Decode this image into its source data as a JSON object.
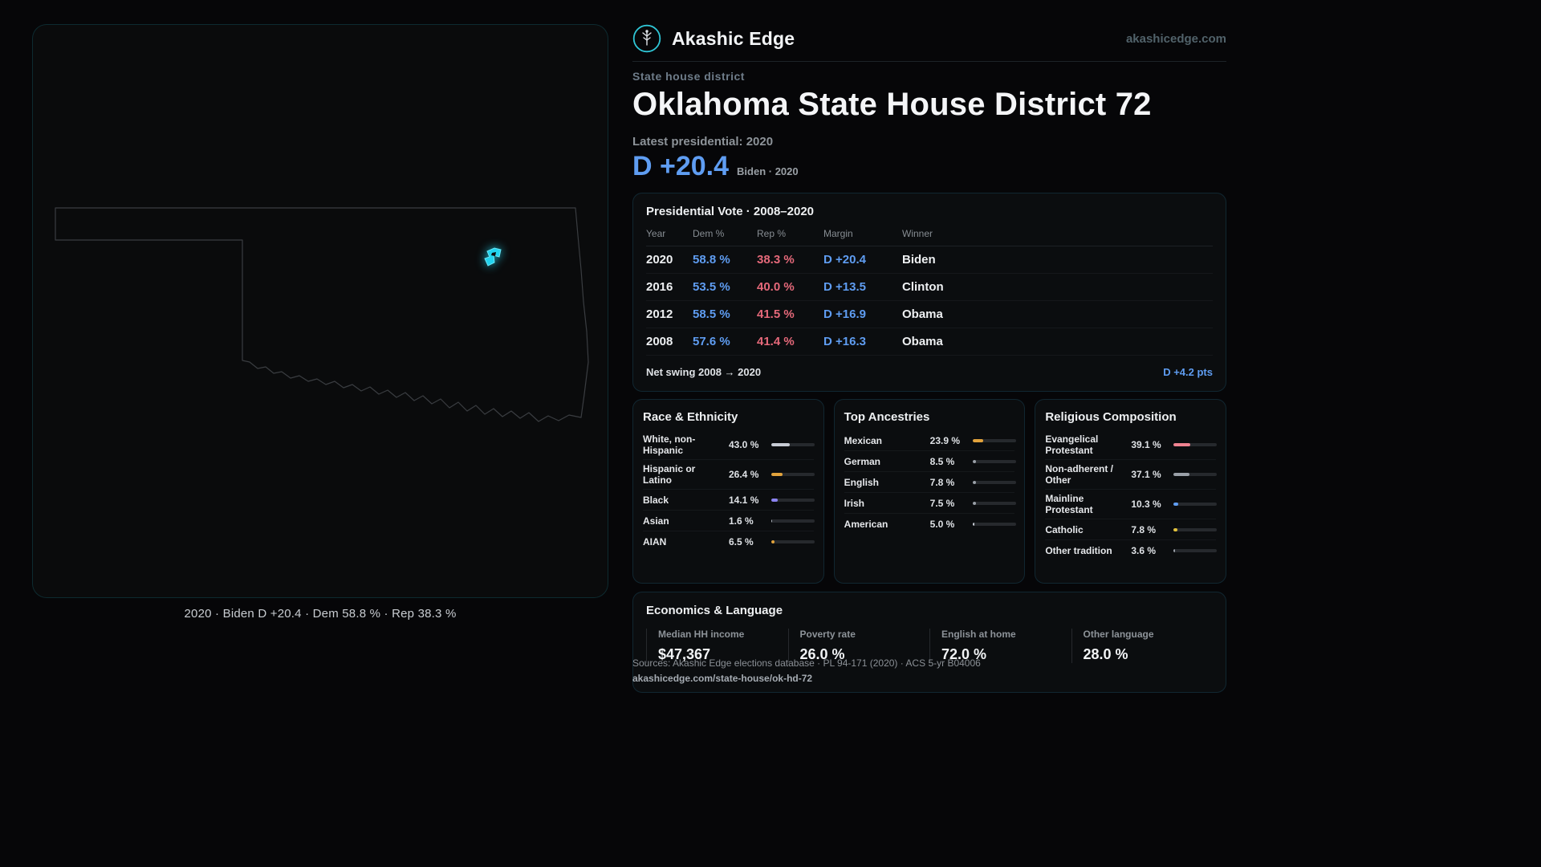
{
  "header": {
    "brand": "Akashic Edge",
    "site": "akashicedge.com"
  },
  "hero": {
    "kicker": "State house district",
    "title": "Oklahoma State House District 72",
    "latest_label": "Latest presidential: 2020",
    "margin_big": "D +20.4",
    "margin_sub": "Biden · 2020"
  },
  "map": {
    "caption": "2020 · Biden D +20.4 · Dem 58.8 % · Rep 38.3 %"
  },
  "vote_card": {
    "title": "Presidential Vote · 2008–2020",
    "columns": [
      "Year",
      "Dem %",
      "Rep %",
      "Margin",
      "Winner"
    ],
    "rows": [
      {
        "year": "2020",
        "dem": "58.8 %",
        "rep": "38.3 %",
        "margin": "D +20.4",
        "winner": "Biden"
      },
      {
        "year": "2016",
        "dem": "53.5 %",
        "rep": "40.0 %",
        "margin": "D +13.5",
        "winner": "Clinton"
      },
      {
        "year": "2012",
        "dem": "58.5 %",
        "rep": "41.5 %",
        "margin": "D +16.9",
        "winner": "Obama"
      },
      {
        "year": "2008",
        "dem": "57.6 %",
        "rep": "41.4 %",
        "margin": "D +16.3",
        "winner": "Obama"
      }
    ],
    "net_swing_label": "Net swing 2008 → 2020",
    "net_swing_value": "D +4.2 pts"
  },
  "race": {
    "title": "Race & Ethnicity",
    "rows": [
      {
        "label": "White, non-Hispanic",
        "value": "43.0 %",
        "pct": 43.0,
        "color": "#c7cbd4"
      },
      {
        "label": "Hispanic or Latino",
        "value": "26.4 %",
        "pct": 26.4,
        "color": "#e2a33c"
      },
      {
        "label": "Black",
        "value": "14.1 %",
        "pct": 14.1,
        "color": "#8b83f0"
      },
      {
        "label": "Asian",
        "value": "1.6 %",
        "pct": 1.6,
        "color": "#aeb4bd"
      },
      {
        "label": "AIAN",
        "value": "6.5 %",
        "pct": 6.5,
        "color": "#e2a33c"
      }
    ]
  },
  "ancestry": {
    "title": "Top Ancestries",
    "rows": [
      {
        "label": "Mexican",
        "value": "23.9 %",
        "pct": 23.9,
        "color": "#e2a33c"
      },
      {
        "label": "German",
        "value": "8.5 %",
        "pct": 8.5,
        "color": "#9aa0a8"
      },
      {
        "label": "English",
        "value": "7.8 %",
        "pct": 7.8,
        "color": "#9aa0a8"
      },
      {
        "label": "Irish",
        "value": "7.5 %",
        "pct": 7.5,
        "color": "#9aa0a8"
      },
      {
        "label": "American",
        "value": "5.0 %",
        "pct": 5.0,
        "color": "#c7cbd4"
      }
    ]
  },
  "religion": {
    "title": "Religious Composition",
    "rows": [
      {
        "label": "Evangelical Protestant",
        "value": "39.1 %",
        "pct": 39.1,
        "color": "#ef8290"
      },
      {
        "label": "Non-adherent / Other",
        "value": "37.1 %",
        "pct": 37.1,
        "color": "#9aa0a8"
      },
      {
        "label": "Mainline Protestant",
        "value": "10.3 %",
        "pct": 10.3,
        "color": "#5f9df2"
      },
      {
        "label": "Catholic",
        "value": "7.8 %",
        "pct": 7.8,
        "color": "#e2c23c"
      },
      {
        "label": "Other tradition",
        "value": "3.6 %",
        "pct": 3.6,
        "color": "#9aa0a8"
      }
    ]
  },
  "econ": {
    "title": "Economics & Language",
    "stats": [
      {
        "label": "Median HH income",
        "value": "$47,367"
      },
      {
        "label": "Poverty rate",
        "value": "26.0 %"
      },
      {
        "label": "English at home",
        "value": "72.0 %"
      },
      {
        "label": "Other language",
        "value": "28.0 %"
      }
    ]
  },
  "footer": {
    "sources": "Sources: Akashic Edge elections database · PL 94-171 (2020) · ACS 5-yr B04006",
    "permalink": "akashicedge.com/state-house/ok-hd-72"
  },
  "colors": {
    "accent_teal": "#22d3ee",
    "dem_blue": "#5f9df2",
    "rep_red": "#e5697a"
  },
  "chart_data": [
    {
      "type": "table",
      "title": "Presidential Vote · 2008–2020",
      "columns": [
        "Year",
        "Dem %",
        "Rep %",
        "Margin",
        "Winner"
      ],
      "rows": [
        [
          2020,
          58.8,
          38.3,
          "D +20.4",
          "Biden"
        ],
        [
          2016,
          53.5,
          40.0,
          "D +13.5",
          "Clinton"
        ],
        [
          2012,
          58.5,
          41.5,
          "D +16.9",
          "Obama"
        ],
        [
          2008,
          57.6,
          41.4,
          "D +16.3",
          "Obama"
        ]
      ],
      "net_swing_2008_2020": "D +4.2 pts"
    },
    {
      "type": "bar",
      "title": "Race & Ethnicity",
      "categories": [
        "White, non-Hispanic",
        "Hispanic or Latino",
        "Black",
        "Asian",
        "AIAN"
      ],
      "values": [
        43.0,
        26.4,
        14.1,
        1.6,
        6.5
      ],
      "unit": "%",
      "xlim": [
        0,
        100
      ]
    },
    {
      "type": "bar",
      "title": "Top Ancestries",
      "categories": [
        "Mexican",
        "German",
        "English",
        "Irish",
        "American"
      ],
      "values": [
        23.9,
        8.5,
        7.8,
        7.5,
        5.0
      ],
      "unit": "%",
      "xlim": [
        0,
        100
      ]
    },
    {
      "type": "bar",
      "title": "Religious Composition",
      "categories": [
        "Evangelical Protestant",
        "Non-adherent / Other",
        "Mainline Protestant",
        "Catholic",
        "Other tradition"
      ],
      "values": [
        39.1,
        37.1,
        10.3,
        7.8,
        3.6
      ],
      "unit": "%",
      "xlim": [
        0,
        100
      ]
    },
    {
      "type": "table",
      "title": "Economics & Language",
      "columns": [
        "Median HH income",
        "Poverty rate",
        "English at home",
        "Other language"
      ],
      "rows": [
        [
          "$47,367",
          "26.0 %",
          "72.0 %",
          "28.0 %"
        ]
      ]
    }
  ]
}
